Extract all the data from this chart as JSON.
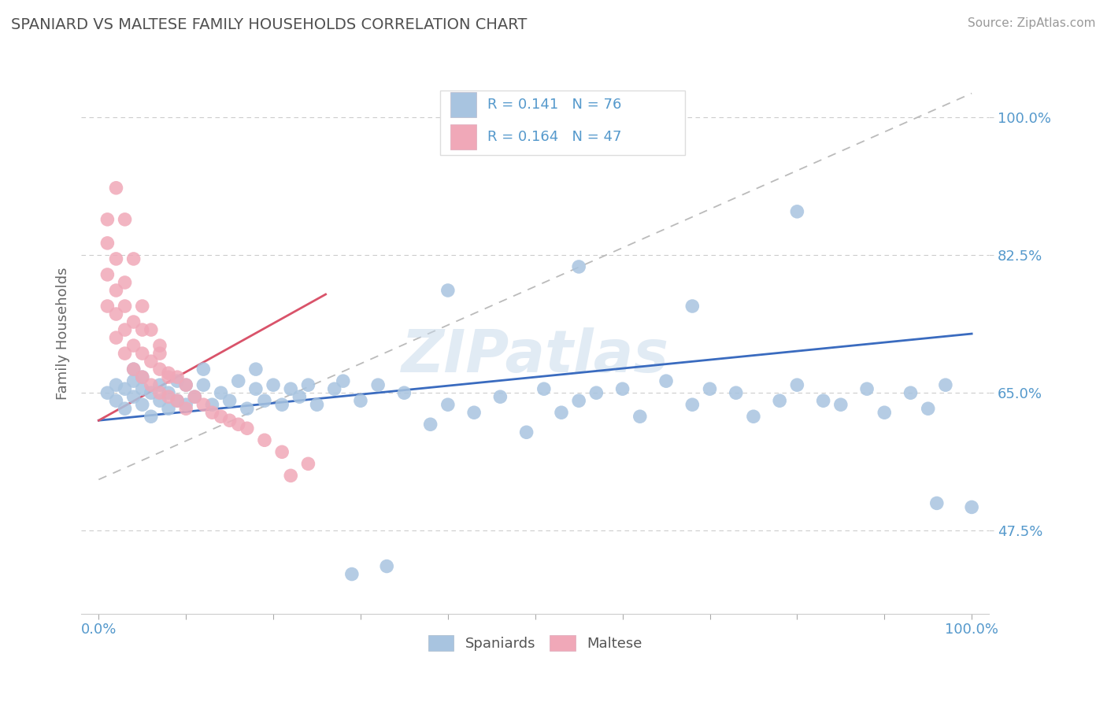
{
  "title": "SPANIARD VS MALTESE FAMILY HOUSEHOLDS CORRELATION CHART",
  "source_text": "Source: ZipAtlas.com",
  "ylabel": "Family Households",
  "xlim": [
    -0.02,
    1.02
  ],
  "ylim": [
    0.37,
    1.08
  ],
  "ytick_vals": [
    0.475,
    0.65,
    0.825,
    1.0
  ],
  "ytick_labels": [
    "47.5%",
    "65.0%",
    "82.5%",
    "100.0%"
  ],
  "xtick_vals": [
    0.0,
    0.1,
    0.2,
    0.3,
    0.4,
    0.5,
    0.6,
    0.7,
    0.8,
    0.9,
    1.0
  ],
  "xtick_label_vals": [
    0.0,
    1.0
  ],
  "xtick_labels": [
    "0.0%",
    "100.0%"
  ],
  "legend_r1": "0.141",
  "legend_n1": "76",
  "legend_r2": "0.164",
  "legend_n2": "47",
  "spaniard_color": "#a8c4e0",
  "maltese_color": "#f0a8b8",
  "trend_blue": "#3a6bbf",
  "trend_pink": "#d9536a",
  "trend_gray": "#bbbbbb",
  "watermark": "ZIPatlas",
  "background_color": "#ffffff",
  "grid_color": "#cccccc",
  "title_color": "#505050",
  "axis_label_color": "#5599cc",
  "ylabel_color": "#666666",
  "blue_trend_x": [
    0.0,
    1.0
  ],
  "blue_trend_y": [
    0.615,
    0.725
  ],
  "pink_trend_x": [
    0.0,
    0.26
  ],
  "pink_trend_y": [
    0.615,
    0.775
  ],
  "gray_trend_x": [
    0.0,
    1.0
  ],
  "gray_trend_y": [
    0.54,
    1.03
  ],
  "spaniard_x": [
    0.01,
    0.02,
    0.02,
    0.03,
    0.03,
    0.04,
    0.04,
    0.04,
    0.05,
    0.05,
    0.05,
    0.06,
    0.06,
    0.07,
    0.07,
    0.08,
    0.08,
    0.09,
    0.09,
    0.1,
    0.1,
    0.11,
    0.12,
    0.12,
    0.13,
    0.14,
    0.15,
    0.16,
    0.17,
    0.18,
    0.18,
    0.19,
    0.2,
    0.21,
    0.22,
    0.23,
    0.24,
    0.25,
    0.27,
    0.28,
    0.3,
    0.32,
    0.35,
    0.38,
    0.4,
    0.43,
    0.46,
    0.49,
    0.51,
    0.53,
    0.55,
    0.57,
    0.6,
    0.62,
    0.65,
    0.68,
    0.7,
    0.73,
    0.75,
    0.78,
    0.8,
    0.83,
    0.85,
    0.88,
    0.9,
    0.93,
    0.95,
    0.97,
    0.4,
    0.55,
    0.68,
    0.8,
    0.96,
    1.0,
    0.29,
    0.33
  ],
  "spaniard_y": [
    0.65,
    0.64,
    0.66,
    0.63,
    0.655,
    0.645,
    0.665,
    0.68,
    0.635,
    0.655,
    0.67,
    0.62,
    0.65,
    0.64,
    0.66,
    0.63,
    0.65,
    0.64,
    0.665,
    0.635,
    0.66,
    0.645,
    0.66,
    0.68,
    0.635,
    0.65,
    0.64,
    0.665,
    0.63,
    0.655,
    0.68,
    0.64,
    0.66,
    0.635,
    0.655,
    0.645,
    0.66,
    0.635,
    0.655,
    0.665,
    0.64,
    0.66,
    0.65,
    0.61,
    0.635,
    0.625,
    0.645,
    0.6,
    0.655,
    0.625,
    0.64,
    0.65,
    0.655,
    0.62,
    0.665,
    0.635,
    0.655,
    0.65,
    0.62,
    0.64,
    0.66,
    0.64,
    0.635,
    0.655,
    0.625,
    0.65,
    0.63,
    0.66,
    0.78,
    0.81,
    0.76,
    0.88,
    0.51,
    0.505,
    0.42,
    0.43
  ],
  "maltese_x": [
    0.01,
    0.01,
    0.01,
    0.02,
    0.02,
    0.02,
    0.02,
    0.03,
    0.03,
    0.03,
    0.03,
    0.04,
    0.04,
    0.04,
    0.05,
    0.05,
    0.05,
    0.06,
    0.06,
    0.07,
    0.07,
    0.07,
    0.08,
    0.08,
    0.09,
    0.09,
    0.1,
    0.1,
    0.11,
    0.12,
    0.13,
    0.14,
    0.15,
    0.16,
    0.17,
    0.19,
    0.21,
    0.24,
    0.01,
    0.02,
    0.03,
    0.04,
    0.05,
    0.06,
    0.07,
    0.08,
    0.22
  ],
  "maltese_y": [
    0.76,
    0.8,
    0.84,
    0.72,
    0.75,
    0.78,
    0.82,
    0.7,
    0.73,
    0.76,
    0.79,
    0.68,
    0.71,
    0.74,
    0.67,
    0.7,
    0.73,
    0.66,
    0.69,
    0.65,
    0.68,
    0.71,
    0.645,
    0.675,
    0.64,
    0.67,
    0.63,
    0.66,
    0.645,
    0.635,
    0.625,
    0.62,
    0.615,
    0.61,
    0.605,
    0.59,
    0.575,
    0.56,
    0.87,
    0.91,
    0.87,
    0.82,
    0.76,
    0.73,
    0.7,
    0.67,
    0.545
  ]
}
